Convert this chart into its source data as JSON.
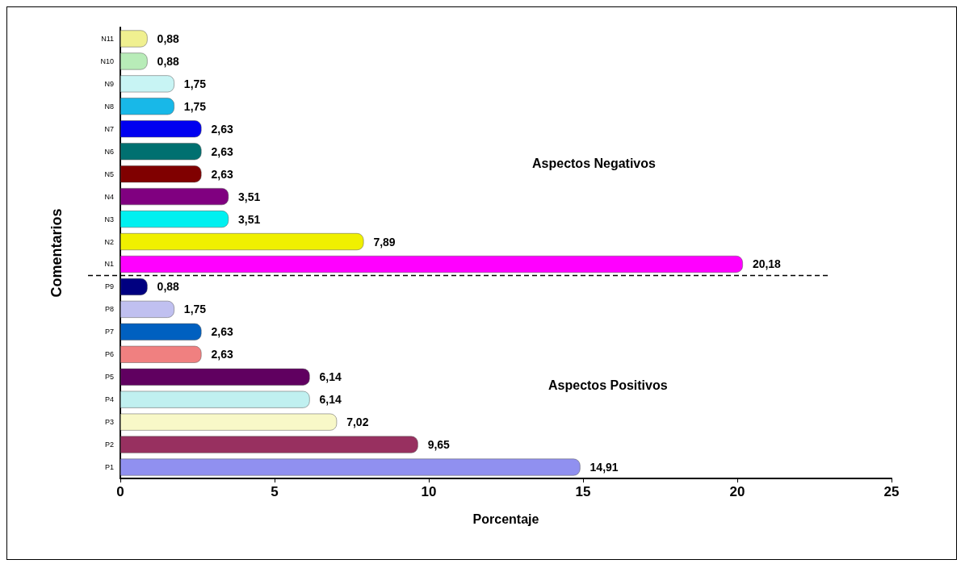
{
  "chart_data": {
    "type": "bar",
    "orientation": "horizontal",
    "xlabel": "Porcentaje",
    "ylabel": "Comentarios",
    "categories": [
      "N11",
      "N10",
      "N9",
      "N8",
      "N7",
      "N6",
      "N5",
      "N4",
      "N3",
      "N2",
      "N1",
      "P9",
      "P8",
      "P7",
      "P6",
      "P5",
      "P4",
      "P3",
      "P2",
      "P1"
    ],
    "values": [
      0.88,
      0.88,
      1.75,
      1.75,
      2.63,
      2.63,
      2.63,
      3.51,
      3.51,
      7.89,
      20.18,
      0.88,
      1.75,
      2.63,
      2.63,
      6.14,
      6.14,
      7.02,
      9.65,
      14.91
    ],
    "colors": [
      "#f0f090",
      "#b8ecb8",
      "#c8f4f4",
      "#18b8e8",
      "#0000f0",
      "#007070",
      "#800000",
      "#800080",
      "#00f0f0",
      "#f0f000",
      "#ff00ff",
      "#000080",
      "#c0c0f0",
      "#0060c0",
      "#f08080",
      "#600060",
      "#c0f0f0",
      "#f8f8c8",
      "#983060",
      "#9090f0"
    ],
    "value_labels": [
      "0,88",
      "0,88",
      "1,75",
      "1,75",
      "2,63",
      "2,63",
      "2,63",
      "3,51",
      "3,51",
      "7,89",
      "20,18",
      "0,88",
      "1,75",
      "2,63",
      "2,63",
      "6,14",
      "6,14",
      "7,02",
      "9,65",
      "14,91"
    ],
    "xlim": [
      0,
      25
    ],
    "xticks": [
      0,
      5,
      10,
      15,
      20,
      25
    ],
    "grid": false,
    "ref_lines": [
      {
        "axis": "y",
        "value": "N1",
        "line_style": "dashed",
        "color": "#000000"
      }
    ],
    "annotations": [
      "Aspectos Negativos",
      "Aspectos Positivos"
    ]
  }
}
